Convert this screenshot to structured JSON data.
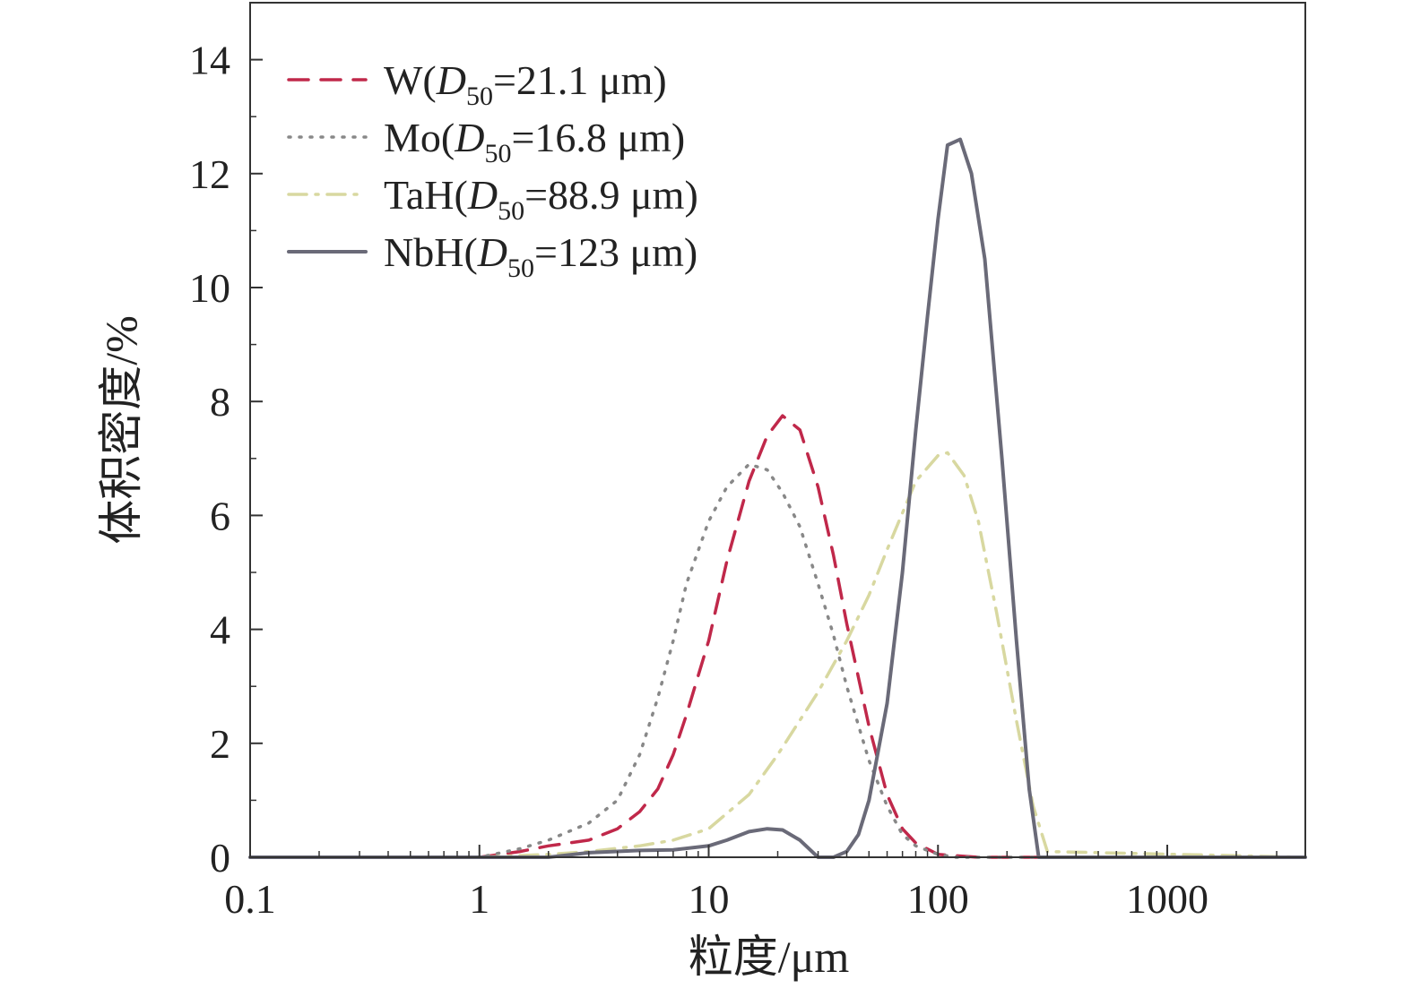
{
  "chart_data": {
    "type": "line",
    "xscale": "log",
    "xlabel": "粒度/μm",
    "ylabel": "体积密度/%",
    "xlim": [
      0.1,
      4000
    ],
    "ylim": [
      0,
      15
    ],
    "x_ticks": [
      0.1,
      1,
      10,
      100,
      1000
    ],
    "x_tick_labels": [
      "0.1",
      "1",
      "10",
      "100",
      "1000"
    ],
    "y_ticks": [
      0,
      2,
      4,
      6,
      8,
      10,
      12,
      14
    ],
    "y_tick_labels": [
      "0",
      "2",
      "4",
      "6",
      "8",
      "10",
      "12",
      "14"
    ],
    "legend_position": "top-left",
    "series": [
      {
        "name": "W(D50=21.1 μm)",
        "legend": {
          "prefix": "W(",
          "italic": "D",
          "sub": "50",
          "suffix": "=21.1 μm)"
        },
        "color": "#c0284a",
        "style": "dashed",
        "x": [
          0.1,
          1,
          1.5,
          2,
          3,
          4,
          5,
          6,
          7,
          8,
          10,
          12,
          15,
          18,
          21,
          25,
          30,
          35,
          40,
          50,
          60,
          70,
          80,
          100,
          150,
          300,
          4000
        ],
        "y": [
          0,
          0,
          0.1,
          0.2,
          0.3,
          0.5,
          0.8,
          1.2,
          1.8,
          2.5,
          3.8,
          5.2,
          6.6,
          7.4,
          7.75,
          7.5,
          6.5,
          5.3,
          4.1,
          2.3,
          1.1,
          0.5,
          0.25,
          0.05,
          0,
          0,
          0
        ]
      },
      {
        "name": "Mo(D50=16.8 μm)",
        "legend": {
          "prefix": "Mo(",
          "italic": "D",
          "sub": "50",
          "suffix": "=16.8 μm)"
        },
        "color": "#888888",
        "style": "dotted",
        "x": [
          0.1,
          1,
          1.5,
          2,
          3,
          4,
          5,
          6,
          7,
          8,
          10,
          12,
          15,
          18,
          21,
          25,
          30,
          35,
          40,
          50,
          60,
          70,
          80,
          100,
          120,
          4000
        ],
        "y": [
          0,
          0,
          0.15,
          0.3,
          0.6,
          1.0,
          1.8,
          2.8,
          3.8,
          4.8,
          5.9,
          6.5,
          6.9,
          6.8,
          6.4,
          5.8,
          4.8,
          3.9,
          3.0,
          1.7,
          0.9,
          0.4,
          0.2,
          0.05,
          0,
          0
        ]
      },
      {
        "name": "TaH(D50=88.9 μm)",
        "legend": {
          "prefix": "TaH(",
          "italic": "D",
          "sub": "50",
          "suffix": "=88.9 μm)"
        },
        "color": "#d8d8a0",
        "style": "dashdot",
        "x": [
          0.1,
          1,
          2,
          3,
          5,
          7,
          10,
          15,
          20,
          30,
          40,
          50,
          60,
          80,
          100,
          110,
          130,
          150,
          180,
          220,
          260,
          300,
          4000
        ],
        "y": [
          0,
          0,
          0.05,
          0.1,
          0.2,
          0.3,
          0.5,
          1.1,
          1.8,
          2.9,
          3.8,
          4.6,
          5.4,
          6.6,
          7.05,
          7.1,
          6.7,
          5.9,
          4.3,
          2.4,
          0.9,
          0.1,
          0
        ]
      },
      {
        "name": "NbH(D50=123 μm)",
        "legend": {
          "prefix": "NbH(",
          "italic": "D",
          "sub": "50",
          "suffix": "=123 μm)"
        },
        "color": "#6a6a78",
        "style": "solid",
        "x": [
          0.1,
          2,
          3,
          5,
          7,
          10,
          12,
          15,
          18,
          21,
          25,
          30,
          35,
          40,
          45,
          50,
          60,
          70,
          80,
          90,
          100,
          110,
          125,
          140,
          160,
          190,
          220,
          250,
          275,
          4000
        ],
        "y": [
          0,
          0,
          0.08,
          0.12,
          0.13,
          0.2,
          0.3,
          0.45,
          0.5,
          0.48,
          0.3,
          0,
          0,
          0.1,
          0.4,
          1.0,
          2.7,
          5.0,
          7.5,
          9.5,
          11.2,
          12.5,
          12.6,
          12.0,
          10.5,
          7.0,
          3.8,
          1.2,
          0,
          0
        ]
      }
    ]
  }
}
